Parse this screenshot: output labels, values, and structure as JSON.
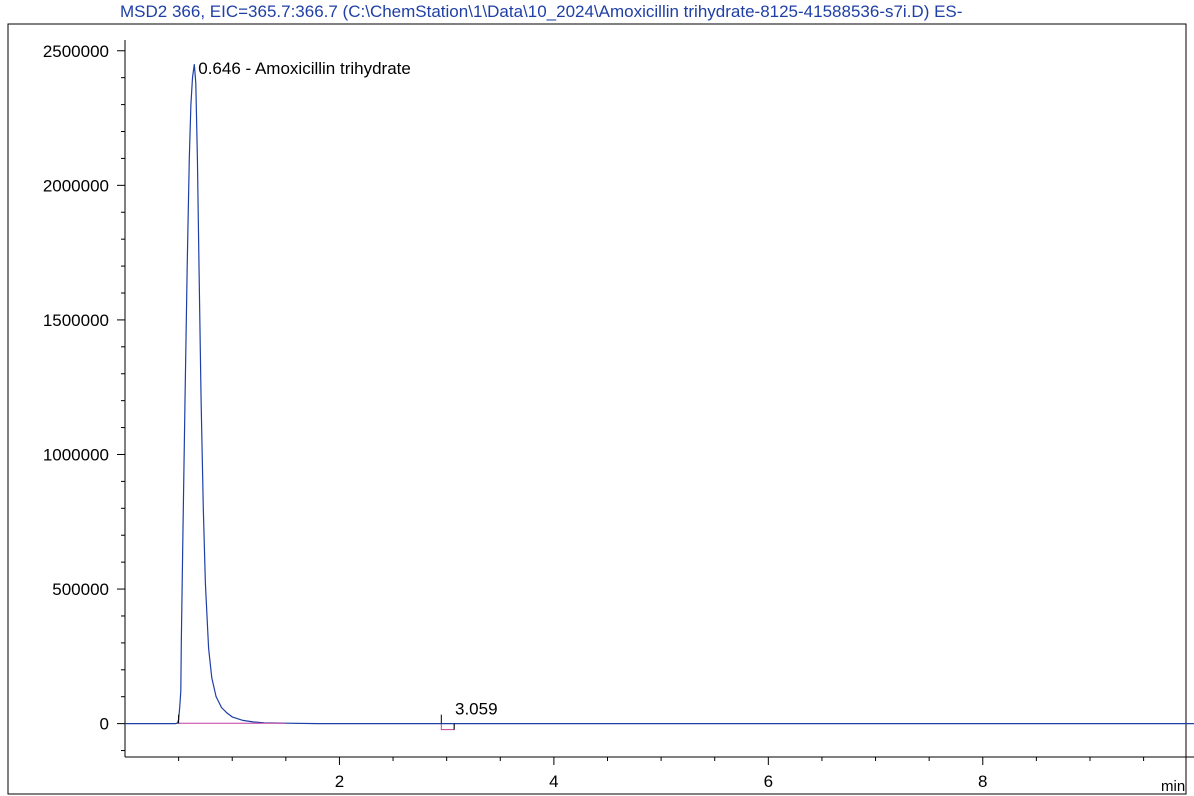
{
  "chart_data": {
    "type": "line",
    "title": "MSD2 366, EIC=365.7:366.7 (C:\\ChemStation\\1\\Data\\10_2024\\Amoxicillin trihydrate-8125-41588536-s7i.D)     ES-",
    "x_unit_label": "min",
    "xlim": [
      0.0,
      9.97
    ],
    "ylim": [
      -124000,
      2540000
    ],
    "x_ticks": [
      2,
      4,
      6,
      8
    ],
    "y_ticks": [
      0,
      500000,
      1000000,
      1500000,
      2000000,
      2500000
    ],
    "y_tick_labels": [
      "0",
      "500000",
      "1000000",
      "1500000",
      "2000000",
      "2500000"
    ],
    "x_tick_labels": [
      "2",
      "4",
      "6",
      "8"
    ],
    "grid": false,
    "series": [
      {
        "color": "#1f3fa6",
        "x": [
          0.0,
          0.4,
          0.47,
          0.49,
          0.5,
          0.51,
          0.52,
          0.525,
          0.54,
          0.56,
          0.58,
          0.6,
          0.615,
          0.63,
          0.646,
          0.66,
          0.675,
          0.69,
          0.71,
          0.73,
          0.75,
          0.78,
          0.81,
          0.85,
          0.9,
          0.95,
          1.0,
          1.1,
          1.2,
          1.3,
          1.5,
          1.8,
          2.5,
          3.0,
          3.059,
          3.2,
          5.0,
          7.0,
          9.97
        ],
        "y": [
          0,
          0,
          0,
          2000,
          15000,
          60000,
          120000,
          300000,
          700000,
          1200000,
          1700000,
          2100000,
          2300000,
          2400000,
          2450000,
          2380000,
          2100000,
          1700000,
          1200000,
          800000,
          520000,
          280000,
          170000,
          100000,
          60000,
          40000,
          25000,
          12000,
          6000,
          3000,
          1500,
          0,
          0,
          0,
          0,
          0,
          0,
          0,
          0
        ]
      }
    ],
    "baselines": [
      {
        "color": "#c23fa0",
        "x": [
          0.5,
          1.5
        ],
        "y": [
          1500,
          1500
        ]
      }
    ],
    "peaks": [
      {
        "rt": 0.646,
        "label": "0.646 -  Amoxicillin trihydrate",
        "y": 2450000,
        "start": 0.5,
        "end": 1.5
      },
      {
        "rt": 3.059,
        "label": "3.059",
        "y": 0,
        "start": 2.95,
        "end": 3.07
      }
    ]
  }
}
